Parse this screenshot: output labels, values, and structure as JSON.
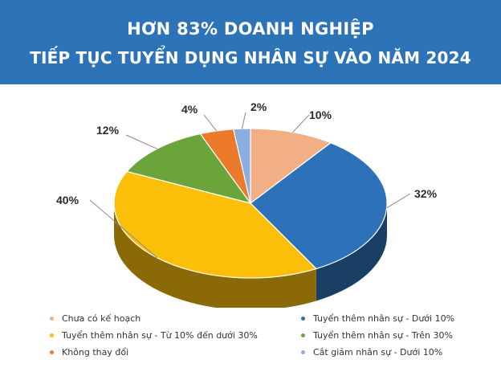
{
  "header": {
    "line1": "HƠN 83% DOANH NGHIỆP",
    "line2": "TIẾP TỤC TUYỂN DỤNG NHÂN SỰ VÀO NĂM 2024"
  },
  "chart_data": {
    "type": "pie",
    "style": "3d",
    "legend_position": "bottom",
    "series": [
      {
        "name": "Chưa có kế hoạch",
        "value": 10,
        "label": "10%",
        "color": "#f2ae84"
      },
      {
        "name": "Tuyển thêm nhân sự - Dưới 10%",
        "value": 32,
        "label": "32%",
        "color": "#2d72b8"
      },
      {
        "name": "Tuyển thêm nhân sự - Từ 10% đến dưới 30%",
        "value": 40,
        "label": "40%",
        "color": "#fbbf0a"
      },
      {
        "name": "Tuyển thêm nhân sự - Trên 30%",
        "value": 12,
        "label": "12%",
        "color": "#6aa43a"
      },
      {
        "name": "Không thay đổi",
        "value": 4,
        "label": "4%",
        "color": "#ec7a2b"
      },
      {
        "name": "Cắt giảm nhân sự - Dưới 10%",
        "value": 2,
        "label": "2%",
        "color": "#8aaee0"
      }
    ]
  }
}
